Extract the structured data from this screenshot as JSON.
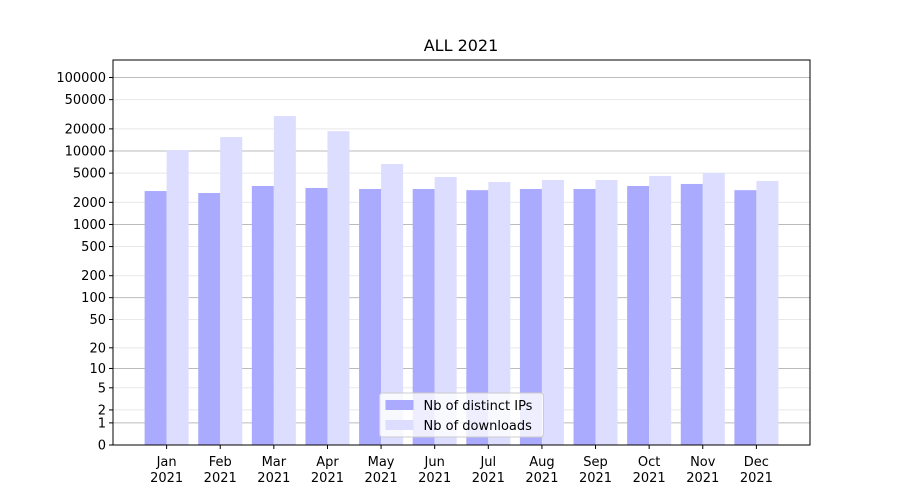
{
  "chart_data": {
    "type": "bar",
    "title": "ALL 2021",
    "categories": [
      "Jan\n2021",
      "Feb\n2021",
      "Mar\n2021",
      "Apr\n2021",
      "May\n2021",
      "Jun\n2021",
      "Jul\n2021",
      "Aug\n2021",
      "Sep\n2021",
      "Oct\n2021",
      "Nov\n2021",
      "Dec\n2021"
    ],
    "series": [
      {
        "name": "Nb of distinct IPs",
        "color": "#aaaaff",
        "values": [
          2850,
          2680,
          3340,
          3140,
          3040,
          3040,
          2930,
          3040,
          3040,
          3340,
          3560,
          2930
        ]
      },
      {
        "name": "Nb of downloads",
        "color": "#ddddff",
        "values": [
          10300,
          15500,
          29900,
          18600,
          6650,
          4430,
          3790,
          4030,
          4030,
          4570,
          5020,
          3910
        ]
      }
    ],
    "yscale": "log1p",
    "ylim": [
      0,
      173000
    ],
    "yticks": [
      0,
      1,
      2,
      5,
      10,
      20,
      50,
      100,
      200,
      500,
      1000,
      2000,
      5000,
      10000,
      20000,
      50000,
      100000
    ],
    "grid": true,
    "legend": "lower center"
  }
}
